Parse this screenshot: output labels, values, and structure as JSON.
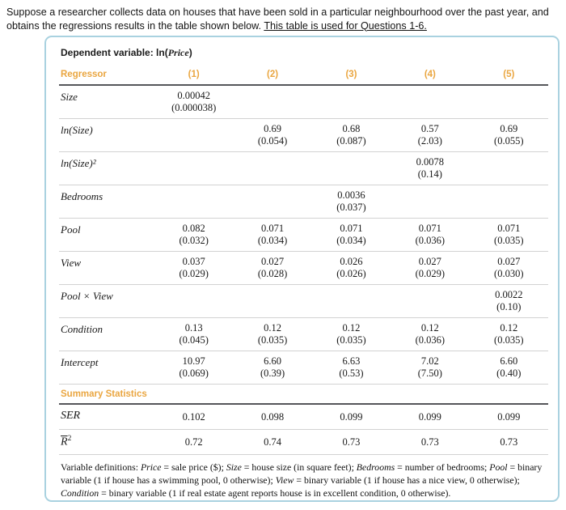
{
  "colors": {
    "accent_orange": "#eaa640",
    "card_border_blue": "#a9d2e0",
    "rule_dark": "#55565a"
  },
  "intro": {
    "text": "Suppose a researcher collects data on houses that have been sold in a particular neighbourhood over the past year, and obtains the regressions results in the table shown below. ",
    "underlined": "This table is used for Questions 1-6."
  },
  "table": {
    "dependent": {
      "prefix": "Dependent variable: ln(",
      "variable": "Price",
      "suffix": ")"
    },
    "regressor_header": "Regressor",
    "columns": [
      "(1)",
      "(2)",
      "(3)",
      "(4)",
      "(5)"
    ],
    "rows": [
      {
        "label": "Size",
        "cells": [
          {
            "coef": "0.00042",
            "se": "(0.000038)"
          },
          {},
          {},
          {},
          {}
        ]
      },
      {
        "label": "ln(Size)",
        "cells": [
          {},
          {
            "coef": "0.69",
            "se": "(0.054)"
          },
          {
            "coef": "0.68",
            "se": "(0.087)"
          },
          {
            "coef": "0.57",
            "se": "(2.03)"
          },
          {
            "coef": "0.69",
            "se": "(0.055)"
          }
        ]
      },
      {
        "label": "ln(Size)²",
        "cells": [
          {},
          {},
          {},
          {
            "coef": "0.0078",
            "se": "(0.14)"
          },
          {}
        ]
      },
      {
        "label": "Bedrooms",
        "cells": [
          {},
          {},
          {
            "coef": "0.0036",
            "se": "(0.037)"
          },
          {},
          {}
        ]
      },
      {
        "label": "Pool",
        "cells": [
          {
            "coef": "0.082",
            "se": "(0.032)"
          },
          {
            "coef": "0.071",
            "se": "(0.034)"
          },
          {
            "coef": "0.071",
            "se": "(0.034)"
          },
          {
            "coef": "0.071",
            "se": "(0.036)"
          },
          {
            "coef": "0.071",
            "se": "(0.035)"
          }
        ]
      },
      {
        "label": "View",
        "cells": [
          {
            "coef": "0.037",
            "se": "(0.029)"
          },
          {
            "coef": "0.027",
            "se": "(0.028)"
          },
          {
            "coef": "0.026",
            "se": "(0.026)"
          },
          {
            "coef": "0.027",
            "se": "(0.029)"
          },
          {
            "coef": "0.027",
            "se": "(0.030)"
          }
        ]
      },
      {
        "label": "Pool × View",
        "cells": [
          {},
          {},
          {},
          {},
          {
            "coef": "0.0022",
            "se": "(0.10)"
          }
        ]
      },
      {
        "label": "Condition",
        "cells": [
          {
            "coef": "0.13",
            "se": "(0.045)"
          },
          {
            "coef": "0.12",
            "se": "(0.035)"
          },
          {
            "coef": "0.12",
            "se": "(0.035)"
          },
          {
            "coef": "0.12",
            "se": "(0.036)"
          },
          {
            "coef": "0.12",
            "se": "(0.035)"
          }
        ]
      },
      {
        "label": "Intercept",
        "cells": [
          {
            "coef": "10.97",
            "se": "(0.069)"
          },
          {
            "coef": "6.60",
            "se": "(0.39)"
          },
          {
            "coef": "6.63",
            "se": "(0.53)"
          },
          {
            "coef": "7.02",
            "se": "(7.50)"
          },
          {
            "coef": "6.60",
            "se": "(0.40)"
          }
        ]
      }
    ],
    "summary": {
      "section_label": "Summary Statistics",
      "rows": [
        {
          "label": "SER",
          "values": [
            "0.102",
            "0.098",
            "0.099",
            "0.099",
            "0.099"
          ]
        },
        {
          "label_base": "R",
          "label_sup": "2",
          "values": [
            "0.72",
            "0.74",
            "0.73",
            "0.73",
            "0.73"
          ]
        }
      ]
    },
    "footnote": {
      "parts": [
        "Variable definitions: ",
        "Price",
        " = sale price ($); ",
        "Size",
        " = house size (in square feet); ",
        "Bedrooms",
        " = number of bedrooms; ",
        "Pool",
        " = binary variable (1 if house has a swimming pool, 0 otherwise); ",
        "View",
        " = binary variable (1 if house has a nice view, 0 otherwise); ",
        "Condition",
        " = binary variable (1 if real estate agent reports house is in excellent condition, 0 otherwise)."
      ]
    }
  }
}
